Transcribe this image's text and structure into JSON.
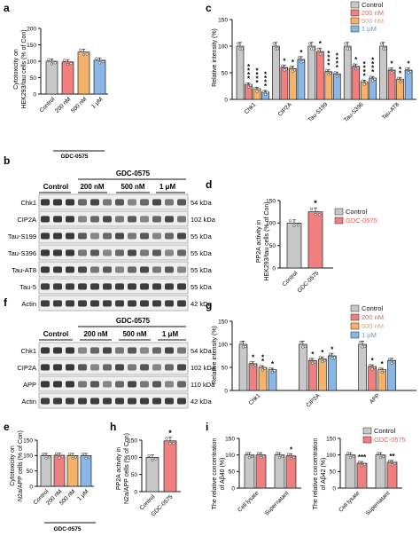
{
  "panels": {
    "a": {
      "label": "a",
      "ylabel1": "Cytotoxicity on",
      "ylabel2": "HEK293/tau cells (% of Con)",
      "yticks": [
        "0",
        "50",
        "100",
        "150",
        "200"
      ],
      "categories": [
        "Control",
        "200 nM",
        "500 nM",
        "1 μM"
      ],
      "group": "GDC-0575"
    },
    "b": {
      "label": "b",
      "header_control": "Control",
      "header_group": "GDC-0575",
      "header_doses": [
        "200 nM",
        "500 nM",
        "1 μM"
      ],
      "rows": [
        {
          "name": "Chk1",
          "kda": "54 kDa"
        },
        {
          "name": "CIP2A",
          "kda": "102 kDa"
        },
        {
          "name": "Tau-S199",
          "kda": "55 kDa"
        },
        {
          "name": "Tau-S396",
          "kda": "55 kDa"
        },
        {
          "name": "Tau-AT8",
          "kda": "55 kDa"
        },
        {
          "name": "Tau-5",
          "kda": "55 kDa"
        },
        {
          "name": "Actin",
          "kda": "42 kDa"
        }
      ]
    },
    "c": {
      "label": "c",
      "ylabel": "Relative intensity (%)",
      "yticks": [
        "0",
        "50",
        "100",
        "150"
      ],
      "groups": [
        "Chk1",
        "CIP2A",
        "Tau-S199",
        "Tau-S396",
        "Tau-AT8"
      ],
      "legend": [
        "Control",
        "200 nM",
        "500 nM",
        "1 μM"
      ],
      "stars": [
        [
          "",
          "****",
          "****",
          "****"
        ],
        [
          "",
          "*",
          "*",
          "*"
        ],
        [
          "",
          "*",
          "****",
          "****"
        ],
        [
          "",
          "*",
          "****",
          "****"
        ],
        [
          "",
          "*",
          "**",
          "*"
        ]
      ]
    },
    "d": {
      "label": "d",
      "ylabel1": "PP2A activity in",
      "ylabel2": "HEK293/tau cells (% of Con)",
      "yticks": [
        "0",
        "50",
        "100",
        "150"
      ],
      "categories": [
        "Control",
        "GDC-0575"
      ],
      "legend": [
        "Control",
        "GDC-0575"
      ],
      "stars": [
        "",
        "*"
      ]
    },
    "f": {
      "label": "f",
      "header_control": "Control",
      "header_group": "GDC-0575",
      "header_doses": [
        "200 nM",
        "500 nM",
        "1 μM"
      ],
      "rows": [
        {
          "name": "Chk1",
          "kda": "54 kDa"
        },
        {
          "name": "CIP2A",
          "kda": "102 kDa"
        },
        {
          "name": "APP",
          "kda": "110 kDa"
        },
        {
          "name": "Actin",
          "kda": "42 kDa"
        }
      ]
    },
    "g": {
      "label": "g",
      "ylabel": "Relative intensity (%)",
      "yticks": [
        "0",
        "50",
        "100",
        "150"
      ],
      "groups": [
        "Chk1",
        "CIP2A",
        "APP"
      ],
      "legend": [
        "Control",
        "200 nM",
        "500 nM",
        "1 μM"
      ],
      "stars": [
        [
          "",
          "*",
          "**",
          "*"
        ],
        [
          "",
          "*",
          "*",
          "*"
        ],
        [
          "",
          "*",
          "*",
          ""
        ]
      ]
    },
    "e": {
      "label": "e",
      "ylabel1": "Cytotoxicity on",
      "ylabel2": "N2a/APP cells (% of Con)",
      "yticks": [
        "0",
        "50",
        "100",
        "150"
      ],
      "categories": [
        "Control",
        "200 nM",
        "500 nM",
        "1 μM"
      ],
      "group": "GDC-0575"
    },
    "h": {
      "label": "h",
      "ylabel1": "PP2A activity in",
      "ylabel2": "N2a/APP cells (% of Con)",
      "yticks": [
        "0",
        "50",
        "100",
        "150"
      ],
      "categories": [
        "Control",
        "GDC-0575"
      ],
      "stars": [
        "",
        "*"
      ]
    },
    "i": {
      "label": "i",
      "ylabel1_left": "The relative concentration",
      "ylabel2_left": "of Aβ40 (%)",
      "ylabel1_right": "The relative concentration",
      "ylabel2_right": "of Aβ42 (%)",
      "yticks": [
        "0",
        "50",
        "100",
        "150"
      ],
      "categories": [
        "Cell lysate",
        "Supernatant"
      ],
      "legend": [
        "Control",
        "GDC-0575"
      ],
      "stars_left": [
        [
          "",
          ""
        ],
        [
          "",
          "*"
        ]
      ],
      "stars_right": [
        [
          "",
          "***"
        ],
        [
          "",
          "**"
        ]
      ]
    }
  },
  "colors": {
    "control": "#c8c8c8",
    "nm200": "#f08080",
    "nm500": "#f5b26b",
    "um1": "#8ab7e6",
    "gdc": "#f08080",
    "gdc_legend_text": "#e06060",
    "nm500_legend_text": "#e8a050",
    "um1_legend_text": "#5a9ad8"
  },
  "chart_data": [
    {
      "type": "bar",
      "panel": "a",
      "categories": [
        "Control",
        "200 nM",
        "500 nM",
        "1 μM"
      ],
      "values": [
        100,
        98,
        128,
        103
      ],
      "ylim": [
        0,
        200
      ]
    },
    {
      "type": "bar",
      "panel": "c",
      "categories": [
        "Chk1",
        "CIP2A",
        "Tau-S199",
        "Tau-S396",
        "Tau-AT8"
      ],
      "series": [
        {
          "name": "Control",
          "values": [
            100,
            100,
            100,
            100,
            100
          ]
        },
        {
          "name": "200 nM",
          "values": [
            28,
            60,
            90,
            62,
            55
          ]
        },
        {
          "name": "500 nM",
          "values": [
            20,
            58,
            52,
            33,
            38
          ]
        },
        {
          "name": "1 μM",
          "values": [
            14,
            75,
            48,
            40,
            55
          ]
        }
      ],
      "ylim": [
        0,
        150
      ]
    },
    {
      "type": "bar",
      "panel": "d",
      "categories": [
        "Control",
        "GDC-0575"
      ],
      "values": [
        100,
        125
      ],
      "ylim": [
        0,
        150
      ]
    },
    {
      "type": "bar",
      "panel": "g",
      "categories": [
        "Chk1",
        "CIP2A",
        "APP"
      ],
      "series": [
        {
          "name": "Control",
          "values": [
            100,
            100,
            100
          ]
        },
        {
          "name": "200 nM",
          "values": [
            58,
            65,
            52
          ]
        },
        {
          "name": "500 nM",
          "values": [
            50,
            68,
            45
          ]
        },
        {
          "name": "1 μM",
          "values": [
            45,
            75,
            65
          ]
        }
      ],
      "ylim": [
        0,
        150
      ]
    },
    {
      "type": "bar",
      "panel": "e",
      "categories": [
        "Control",
        "200 nM",
        "500 nM",
        "1 μM"
      ],
      "values": [
        100,
        101,
        100,
        100
      ],
      "ylim": [
        0,
        150
      ]
    },
    {
      "type": "bar",
      "panel": "h",
      "categories": [
        "Control",
        "GDC-0575"
      ],
      "values": [
        100,
        148
      ],
      "ylim": [
        0,
        150
      ]
    },
    {
      "type": "bar",
      "panel": "i-left",
      "categories": [
        "Cell lysate",
        "Supernatant"
      ],
      "series": [
        {
          "name": "Control",
          "values": [
            100,
            100
          ]
        },
        {
          "name": "GDC-0575",
          "values": [
            100,
            97
          ]
        }
      ],
      "ylim": [
        0,
        150
      ]
    },
    {
      "type": "bar",
      "panel": "i-right",
      "categories": [
        "Cell lysate",
        "Supernatant"
      ],
      "series": [
        {
          "name": "Control",
          "values": [
            100,
            100
          ]
        },
        {
          "name": "GDC-0575",
          "values": [
            75,
            78
          ]
        }
      ],
      "ylim": [
        0,
        150
      ]
    }
  ]
}
